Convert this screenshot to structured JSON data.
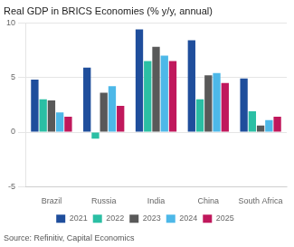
{
  "chart_data": {
    "type": "bar",
    "title": "Real GDP in BRICS Economies (% y/y, annual)",
    "annotations": [
      "Source: Refinitiv, Capital Economics"
    ],
    "categories": [
      "Brazil",
      "Russia",
      "India",
      "China",
      "South Africa"
    ],
    "series": [
      {
        "name": "2021",
        "color": "#1f4e9c",
        "values": [
          4.8,
          5.9,
          9.4,
          8.4,
          4.9
        ]
      },
      {
        "name": "2022",
        "color": "#2bbfa4",
        "values": [
          3.0,
          -0.6,
          6.5,
          3.0,
          1.9
        ]
      },
      {
        "name": "2023",
        "color": "#595959",
        "values": [
          2.9,
          3.6,
          7.8,
          5.2,
          0.6
        ]
      },
      {
        "name": "2024",
        "color": "#4db8e8",
        "values": [
          1.8,
          4.2,
          7.0,
          5.4,
          1.1
        ]
      },
      {
        "name": "2025",
        "color": "#c0185c",
        "values": [
          1.4,
          2.4,
          6.5,
          4.5,
          1.4
        ]
      }
    ],
    "ylim": [
      -5,
      10
    ],
    "yticks": [
      -5,
      0,
      5,
      10
    ],
    "grid": "y",
    "legend": "bottom"
  }
}
